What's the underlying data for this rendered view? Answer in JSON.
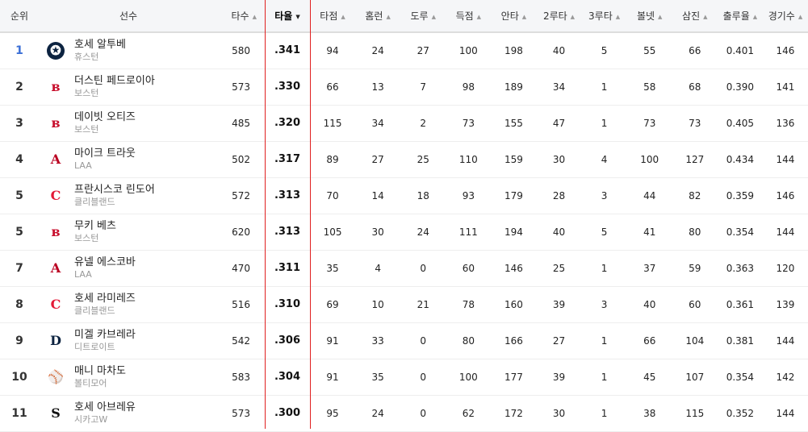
{
  "headers": {
    "rank": "순위",
    "player": "선수",
    "ab": "타수",
    "avg": "타율",
    "rbi": "타점",
    "hr": "홈런",
    "sb": "도루",
    "r": "득점",
    "h": "안타",
    "d": "2루타",
    "t": "3루타",
    "bb": "볼넷",
    "so": "삼진",
    "obp": "출루율",
    "g": "경기수"
  },
  "sort": {
    "column": "avg",
    "direction": "desc",
    "highlight_color": "#e02020"
  },
  "rows": [
    {
      "rank": "1",
      "name": "호세 알투베",
      "team": "휴스턴",
      "logo": "astros-logo",
      "ab": "580",
      "avg": ".341",
      "rbi": "94",
      "hr": "24",
      "sb": "27",
      "r": "100",
      "h": "198",
      "d": "40",
      "t": "5",
      "bb": "55",
      "so": "66",
      "obp": "0.401",
      "g": "146"
    },
    {
      "rank": "2",
      "name": "더스틴 페드로이아",
      "team": "보스턴",
      "logo": "red-sox-logo",
      "ab": "573",
      "avg": ".330",
      "rbi": "66",
      "hr": "13",
      "sb": "7",
      "r": "98",
      "h": "189",
      "d": "34",
      "t": "1",
      "bb": "58",
      "so": "68",
      "obp": "0.390",
      "g": "141"
    },
    {
      "rank": "3",
      "name": "데이빗 오티즈",
      "team": "보스턴",
      "logo": "red-sox-logo",
      "ab": "485",
      "avg": ".320",
      "rbi": "115",
      "hr": "34",
      "sb": "2",
      "r": "73",
      "h": "155",
      "d": "47",
      "t": "1",
      "bb": "73",
      "so": "73",
      "obp": "0.405",
      "g": "136"
    },
    {
      "rank": "4",
      "name": "마이크 트라웃",
      "team": "LAA",
      "logo": "angels-logo",
      "ab": "502",
      "avg": ".317",
      "rbi": "89",
      "hr": "27",
      "sb": "25",
      "r": "110",
      "h": "159",
      "d": "30",
      "t": "4",
      "bb": "100",
      "so": "127",
      "obp": "0.434",
      "g": "144"
    },
    {
      "rank": "5",
      "name": "프란시스코 린도어",
      "team": "클리블랜드",
      "logo": "indians-logo",
      "ab": "572",
      "avg": ".313",
      "rbi": "70",
      "hr": "14",
      "sb": "18",
      "r": "93",
      "h": "179",
      "d": "28",
      "t": "3",
      "bb": "44",
      "so": "82",
      "obp": "0.359",
      "g": "146"
    },
    {
      "rank": "5",
      "name": "무키 베츠",
      "team": "보스턴",
      "logo": "red-sox-logo",
      "ab": "620",
      "avg": ".313",
      "rbi": "105",
      "hr": "30",
      "sb": "24",
      "r": "111",
      "h": "194",
      "d": "40",
      "t": "5",
      "bb": "41",
      "so": "80",
      "obp": "0.354",
      "g": "144"
    },
    {
      "rank": "7",
      "name": "유넬 에스코바",
      "team": "LAA",
      "logo": "angels-logo",
      "ab": "470",
      "avg": ".311",
      "rbi": "35",
      "hr": "4",
      "sb": "0",
      "r": "60",
      "h": "146",
      "d": "25",
      "t": "1",
      "bb": "37",
      "so": "59",
      "obp": "0.363",
      "g": "120"
    },
    {
      "rank": "8",
      "name": "호세 라미레즈",
      "team": "클리블랜드",
      "logo": "indians-logo",
      "ab": "516",
      "avg": ".310",
      "rbi": "69",
      "hr": "10",
      "sb": "21",
      "r": "78",
      "h": "160",
      "d": "39",
      "t": "3",
      "bb": "40",
      "so": "60",
      "obp": "0.361",
      "g": "139"
    },
    {
      "rank": "9",
      "name": "미겔 카브레라",
      "team": "디트로이트",
      "logo": "tigers-logo",
      "ab": "542",
      "avg": ".306",
      "rbi": "91",
      "hr": "33",
      "sb": "0",
      "r": "80",
      "h": "166",
      "d": "27",
      "t": "1",
      "bb": "66",
      "so": "104",
      "obp": "0.381",
      "g": "144"
    },
    {
      "rank": "10",
      "name": "매니 마차도",
      "team": "볼티모어",
      "logo": "orioles-logo",
      "ab": "583",
      "avg": ".304",
      "rbi": "91",
      "hr": "35",
      "sb": "0",
      "r": "100",
      "h": "177",
      "d": "39",
      "t": "1",
      "bb": "45",
      "so": "107",
      "obp": "0.354",
      "g": "142"
    },
    {
      "rank": "11",
      "name": "호세 아브레유",
      "team": "시카고W",
      "logo": "white-sox-logo",
      "ab": "573",
      "avg": ".300",
      "rbi": "95",
      "hr": "24",
      "sb": "0",
      "r": "62",
      "h": "172",
      "d": "30",
      "t": "1",
      "bb": "38",
      "so": "115",
      "obp": "0.352",
      "g": "144"
    }
  ]
}
